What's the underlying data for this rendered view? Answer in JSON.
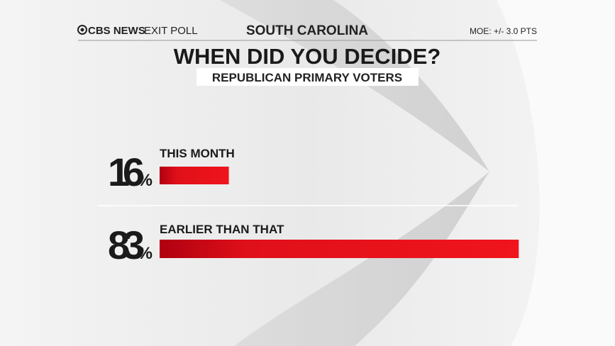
{
  "header": {
    "brand": "CBS NEWS",
    "brand_sub": "EXIT POLL",
    "state": "SOUTH CAROLINA",
    "moe": "MOE: +/- 3.0 PTS"
  },
  "chart_data": {
    "type": "bar",
    "title": "WHEN DID YOU DECIDE?",
    "subtitle": "REPUBLICAN PRIMARY VOTERS",
    "categories": [
      "THIS MONTH",
      "EARLIER THAN THAT"
    ],
    "values": [
      16,
      83
    ],
    "value_labels": [
      "16%",
      "83%"
    ],
    "color": "#e0101a"
  }
}
